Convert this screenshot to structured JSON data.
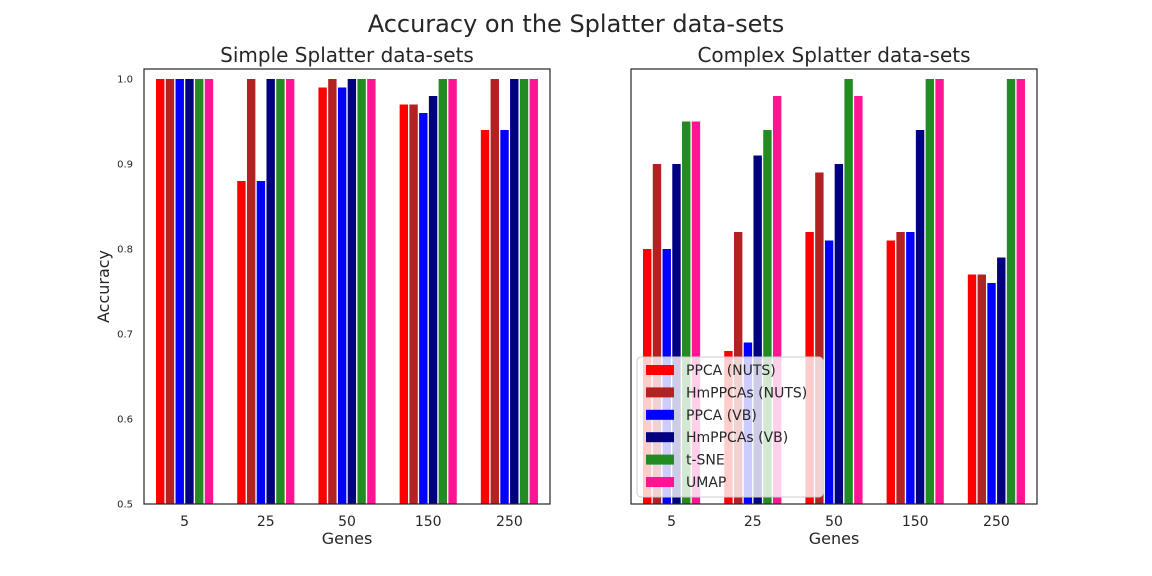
{
  "figure": {
    "suptitle": "Accuracy on the Splatter data-sets"
  },
  "legend": {
    "placement": "lower-left"
  },
  "chart_data": [
    {
      "type": "bar",
      "title": "Simple Splatter data-sets",
      "xlabel": "Genes",
      "ylabel": "Accuracy",
      "ylim": [
        0.5,
        1.0
      ],
      "yticks": [
        "0.5",
        "0.6",
        "0.7",
        "0.8",
        "0.9",
        "1.0"
      ],
      "grid": false,
      "categories": [
        "5",
        "25",
        "50",
        "150",
        "250"
      ],
      "series": [
        {
          "name": "PPCA (NUTS)",
          "color": "#ff0000",
          "values": [
            1.0,
            0.88,
            0.99,
            0.97,
            0.94
          ]
        },
        {
          "name": "HmPPCAs (NUTS)",
          "color": "#b22222",
          "values": [
            1.0,
            1.0,
            1.0,
            0.97,
            1.0
          ]
        },
        {
          "name": "PPCA (VB)",
          "color": "#0000ff",
          "values": [
            1.0,
            0.88,
            0.99,
            0.96,
            0.94
          ]
        },
        {
          "name": "HmPPCAs (VB)",
          "color": "#000080",
          "values": [
            1.0,
            1.0,
            1.0,
            0.98,
            1.0
          ]
        },
        {
          "name": "t-SNE",
          "color": "#228b22",
          "values": [
            1.0,
            1.0,
            1.0,
            1.0,
            1.0
          ]
        },
        {
          "name": "UMAP",
          "color": "#ff1493",
          "values": [
            1.0,
            1.0,
            1.0,
            1.0,
            1.0
          ]
        }
      ]
    },
    {
      "type": "bar",
      "title": "Complex Splatter data-sets",
      "xlabel": "Genes",
      "ylabel": "",
      "ylim": [
        0.5,
        1.0
      ],
      "yticks": [],
      "grid": false,
      "categories": [
        "5",
        "25",
        "50",
        "150",
        "250"
      ],
      "series": [
        {
          "name": "PPCA (NUTS)",
          "color": "#ff0000",
          "values": [
            0.8,
            0.68,
            0.82,
            0.81,
            0.77
          ]
        },
        {
          "name": "HmPPCAs (NUTS)",
          "color": "#b22222",
          "values": [
            0.9,
            0.82,
            0.89,
            0.82,
            0.77
          ]
        },
        {
          "name": "PPCA (VB)",
          "color": "#0000ff",
          "values": [
            0.8,
            0.69,
            0.81,
            0.82,
            0.76
          ]
        },
        {
          "name": "HmPPCAs (VB)",
          "color": "#000080",
          "values": [
            0.9,
            0.91,
            0.9,
            0.94,
            0.79
          ]
        },
        {
          "name": "t-SNE",
          "color": "#228b22",
          "values": [
            0.95,
            0.94,
            1.0,
            1.0,
            1.0
          ]
        },
        {
          "name": "UMAP",
          "color": "#ff1493",
          "values": [
            0.95,
            0.98,
            0.98,
            1.0,
            1.0
          ]
        }
      ]
    }
  ]
}
